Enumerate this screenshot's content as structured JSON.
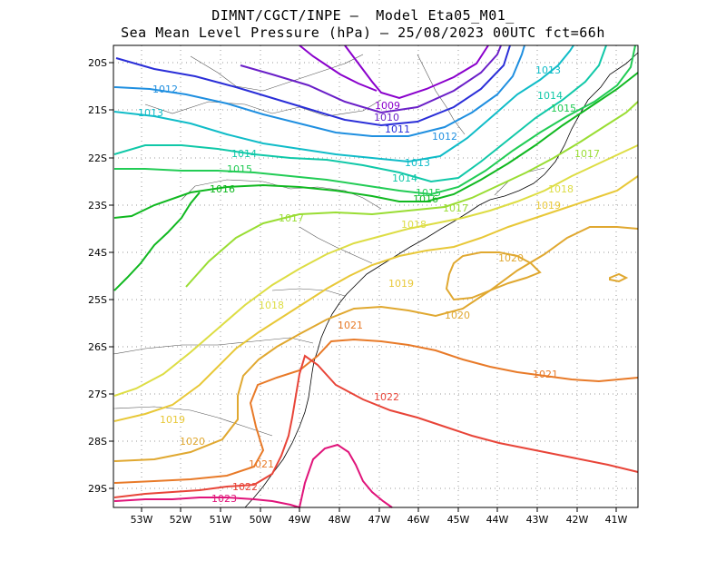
{
  "title": {
    "line1": "DIMNT/CGCT/INPE –  Model Eta05_M01_",
    "line2": "Sea Mean Level Pressure (hPa) – 25/08/2023 00UTC fct=66h"
  },
  "map": {
    "lon_ticks": [
      "53W",
      "52W",
      "51W",
      "50W",
      "49W",
      "48W",
      "47W",
      "46W",
      "45W",
      "44W",
      "43W",
      "42W",
      "41W"
    ],
    "lat_ticks": [
      "20S",
      "21S",
      "22S",
      "23S",
      "24S",
      "25S",
      "26S",
      "27S",
      "28S",
      "29S"
    ]
  },
  "chart_data": {
    "type": "contour",
    "variable": "Sea Mean Level Pressure (hPa)",
    "domain": {
      "lon_range": [
        -53.7,
        -40.5
      ],
      "lat_range": [
        -29.4,
        -19.9
      ]
    },
    "isobars": [
      {
        "hpa": 1009,
        "label": "1009",
        "color": "#8a00cc"
      },
      {
        "hpa": 1010,
        "label": "1010",
        "color": "#6a1fc8"
      },
      {
        "hpa": 1011,
        "label": "1011",
        "color": "#2a2ed8"
      },
      {
        "hpa": 1012,
        "label": "1012",
        "color": "#1f8fe0"
      },
      {
        "hpa": 1013,
        "label": "1013",
        "color": "#10bcc8"
      },
      {
        "hpa": 1014,
        "label": "1014",
        "color": "#10c8a8"
      },
      {
        "hpa": 1015,
        "label": "1015",
        "color": "#22cc55"
      },
      {
        "hpa": 1016,
        "label": "1016",
        "color": "#10b820"
      },
      {
        "hpa": 1017,
        "label": "1017",
        "color": "#99dd33"
      },
      {
        "hpa": 1018,
        "label": "1018",
        "color": "#dddd44"
      },
      {
        "hpa": 1019,
        "label": "1019",
        "color": "#e8c838"
      },
      {
        "hpa": 1020,
        "label": "1020",
        "color": "#e0a830"
      },
      {
        "hpa": 1021,
        "label": "1021",
        "color": "#e87a28"
      },
      {
        "hpa": 1022,
        "label": "1022",
        "color": "#e84438"
      },
      {
        "hpa": 1023,
        "label": "1023",
        "color": "#e0147a"
      }
    ],
    "labels": [
      {
        "text": "1009",
        "lon": -47.2,
        "lat": -20.9
      },
      {
        "text": "1010",
        "lon": -47.2,
        "lat": -21.2
      },
      {
        "text": "1011",
        "lon": -46.9,
        "lat": -21.4
      },
      {
        "text": "1012",
        "lon": -53.0,
        "lat": -20.6
      },
      {
        "text": "1012",
        "lon": -46.3,
        "lat": -21.6
      },
      {
        "text": "1013",
        "lon": -53.0,
        "lat": -21.1
      },
      {
        "text": "1013",
        "lon": -46.3,
        "lat": -22.1
      },
      {
        "text": "1013",
        "lon": -43.0,
        "lat": -20.2
      },
      {
        "text": "1014",
        "lon": -50.8,
        "lat": -21.9
      },
      {
        "text": "1014",
        "lon": -46.6,
        "lat": -22.4
      },
      {
        "text": "1014",
        "lon": -43.0,
        "lat": -20.8
      },
      {
        "text": "1015",
        "lon": -50.8,
        "lat": -22.2
      },
      {
        "text": "1015",
        "lon": -46.2,
        "lat": -22.7
      },
      {
        "text": "1015",
        "lon": -42.6,
        "lat": -21.1
      },
      {
        "text": "1016",
        "lon": -51.3,
        "lat": -22.7
      },
      {
        "text": "1016",
        "lon": -46.1,
        "lat": -22.9
      },
      {
        "text": "1017",
        "lon": -49.8,
        "lat": -23.3
      },
      {
        "text": "1017",
        "lon": -45.4,
        "lat": -23.0
      },
      {
        "text": "1017",
        "lon": -41.9,
        "lat": -21.9
      },
      {
        "text": "1018",
        "lon": -50.0,
        "lat": -25.2
      },
      {
        "text": "1018",
        "lon": -46.4,
        "lat": -23.4
      },
      {
        "text": "1018",
        "lon": -42.9,
        "lat": -22.7
      },
      {
        "text": "1019",
        "lon": -46.7,
        "lat": -24.6
      },
      {
        "text": "1019",
        "lon": -43.6,
        "lat": -22.9
      },
      {
        "text": "1019",
        "lon": -52.3,
        "lat": -27.5
      },
      {
        "text": "1020",
        "lon": -44.0,
        "lat": -24.1
      },
      {
        "text": "1020",
        "lon": -45.3,
        "lat": -25.4
      },
      {
        "text": "1020",
        "lon": -51.6,
        "lat": -28.0
      },
      {
        "text": "1021",
        "lon": -48.7,
        "lat": -25.6
      },
      {
        "text": "1021",
        "lon": -43.4,
        "lat": -26.6
      },
      {
        "text": "1021",
        "lon": -50.3,
        "lat": -28.5
      },
      {
        "text": "1022",
        "lon": -47.8,
        "lat": -27.0
      },
      {
        "text": "1022",
        "lon": -50.7,
        "lat": -29.1
      },
      {
        "text": "1023",
        "lon": -51.0,
        "lat": -29.3
      }
    ]
  }
}
